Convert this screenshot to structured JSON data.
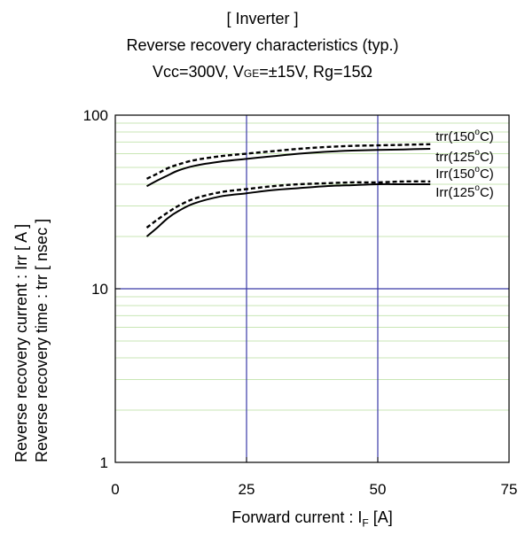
{
  "chart_data": {
    "type": "line",
    "title_lines": [
      "[ Inverter ]",
      "Reverse recovery characteristics  (typ.)",
      "Vcc=300V,  VGE=±15V,  Rg=15Ω"
    ],
    "title_parts": {
      "line3_prefix": "Vcc=300V,  V",
      "line3_sub": "GE",
      "line3_suffix": "=±15V,  Rg=15Ω"
    },
    "xlabel": {
      "text": "Forward current : I",
      "sub": "F",
      "unit": " [A]"
    },
    "ylabel_lines": [
      "Reverse recovery current  :  Irr  [ A ]",
      "Reverse recovery time  :  trr  [ nsec ]"
    ],
    "x_ticks": [
      "0",
      "25",
      "50",
      "75"
    ],
    "y_ticks": [
      "1",
      "10",
      "100"
    ],
    "xlim": [
      0,
      75
    ],
    "ylim": [
      1,
      100
    ],
    "y_scale": "log",
    "grid": true,
    "series": [
      {
        "name": "trr(150°C)",
        "label_main": "trr(150",
        "label_sup": "o",
        "label_end": "C)",
        "style": "dashed",
        "x": [
          6,
          8,
          10,
          12,
          15,
          20,
          25,
          30,
          35,
          40,
          45,
          50,
          55,
          60
        ],
        "y": [
          43,
          46,
          49.5,
          52,
          55,
          58,
          60,
          62,
          64,
          65.5,
          66.5,
          67,
          67.5,
          68
        ]
      },
      {
        "name": "trr(125°C)",
        "label_main": "trr(125",
        "label_sup": "o",
        "label_end": "C)",
        "style": "solid",
        "x": [
          6,
          8,
          10,
          12,
          15,
          20,
          25,
          30,
          35,
          40,
          45,
          50,
          55,
          60
        ],
        "y": [
          39,
          42,
          45,
          48,
          51,
          54,
          56,
          58,
          60,
          61.5,
          62.5,
          63,
          63.5,
          64
        ]
      },
      {
        "name": "Irr(150°C)",
        "label_main": "Irr(150",
        "label_sup": "o",
        "label_end": "C)",
        "style": "dashed",
        "x": [
          6,
          8,
          10,
          12,
          15,
          20,
          25,
          30,
          35,
          40,
          45,
          50,
          55,
          60
        ],
        "y": [
          22.5,
          25,
          27.5,
          30,
          33,
          36,
          37.5,
          39,
          40,
          40.5,
          41,
          41,
          41.5,
          41.5
        ]
      },
      {
        "name": "Irr(125°C)",
        "label_main": "Irr(125",
        "label_sup": "o",
        "label_end": "C)",
        "style": "solid",
        "x": [
          6,
          8,
          10,
          12,
          15,
          20,
          25,
          30,
          35,
          40,
          45,
          50,
          55,
          60
        ],
        "y": [
          20,
          22.5,
          25.5,
          28,
          31,
          34,
          35.5,
          37,
          38,
          39,
          39.5,
          40,
          40,
          40
        ]
      }
    ],
    "colors": {
      "major_grid": "#3a3aa8",
      "minor_grid": "#c8e6b4",
      "curves": "#000000"
    }
  }
}
